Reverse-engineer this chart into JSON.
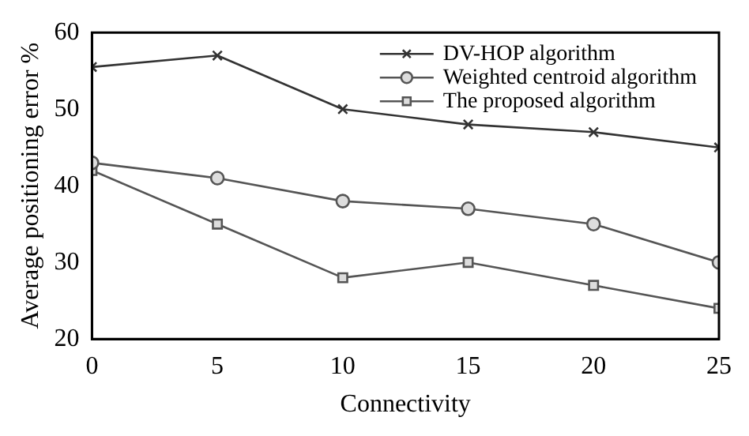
{
  "chart_data": {
    "type": "line",
    "xlabel": "Connectivity",
    "ylabel": "Average positioning error %",
    "x": [
      0,
      5,
      10,
      15,
      20,
      25
    ],
    "series": [
      {
        "name": "DV-HOP algorithm",
        "color": "#333333",
        "marker": "cross",
        "values": [
          55.5,
          57,
          50,
          48,
          47,
          45
        ]
      },
      {
        "name": "Weighted centroid algorithm",
        "color": "#555555",
        "marker": "circle",
        "values": [
          43,
          41,
          38,
          37,
          35,
          30
        ]
      },
      {
        "name": "The proposed algorithm",
        "color": "#555555",
        "marker": "square",
        "values": [
          42,
          35,
          28,
          30,
          27,
          24
        ]
      }
    ],
    "xlim": [
      0,
      25
    ],
    "xticks": [
      0,
      5,
      10,
      15,
      20,
      25
    ],
    "ylim": [
      20,
      60
    ],
    "yticks": [
      20,
      30,
      40,
      50,
      60
    ],
    "grid": false,
    "legend": "top right",
    "line_style": "solid"
  }
}
